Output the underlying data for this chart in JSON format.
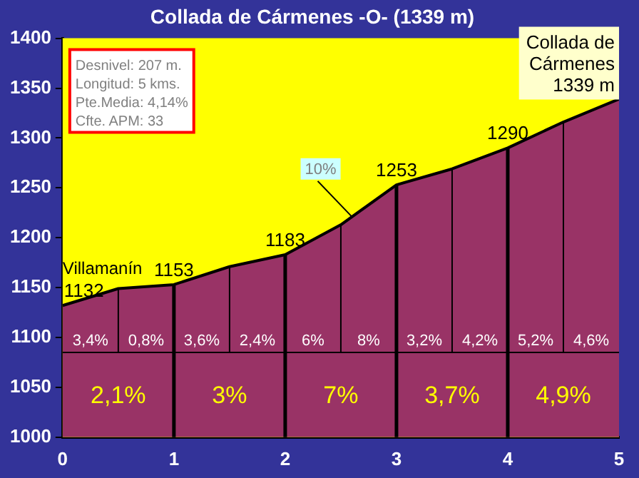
{
  "chart_data": {
    "type": "area",
    "title": "Collada de Cármenes -O- (1339 m)",
    "x": [
      0,
      0.5,
      1,
      1.5,
      2,
      2.5,
      3,
      3.5,
      4,
      4.5,
      5
    ],
    "series": [
      {
        "color": "#993366",
        "values": [
          1132,
          1149,
          1153,
          1171,
          1183,
          1213,
          1253,
          1269,
          1290,
          1316,
          1339
        ],
        "value_labels": [
          "1132",
          null,
          "1153",
          null,
          "1183",
          null,
          "1253",
          null,
          "1290",
          null,
          null
        ]
      }
    ],
    "xlim": [
      0,
      5
    ],
    "xticks": [
      0,
      1,
      2,
      3,
      4,
      5
    ],
    "ylim": [
      1000,
      1400
    ],
    "yticks": [
      1000,
      1050,
      1100,
      1150,
      1200,
      1250,
      1300,
      1350,
      1400
    ],
    "grid": false,
    "legend": false,
    "marker": "none",
    "ref_lines": [
      {
        "axis": "x",
        "value": 0.5
      },
      {
        "axis": "x",
        "value": 1
      },
      {
        "axis": "x",
        "value": 1.5
      },
      {
        "axis": "x",
        "value": 2
      },
      {
        "axis": "x",
        "value": 2.5
      },
      {
        "axis": "x",
        "value": 3
      },
      {
        "axis": "x",
        "value": 3.5
      },
      {
        "axis": "x",
        "value": 4
      },
      {
        "axis": "x",
        "value": 4.5
      },
      {
        "axis": "y",
        "value": 1085
      }
    ],
    "annotations": [
      "Desnivel: 207 m.\nLongitud: 5 kms.\nPte.Media: 4,14%\nCfte. APM: 33",
      "Collada de\nCármenes\n1339 m",
      "Villamanín",
      {
        "text": "10%",
        "x": 2.6,
        "y": 1221
      },
      "3,4%",
      "0,8%",
      "3,6%",
      "2,4%",
      "6%",
      "8%",
      "3,2%",
      "4,2%",
      "5,2%",
      "4,6%",
      "2,1%",
      "3%",
      "7%",
      "3,7%",
      "4,9%"
    ]
  }
}
